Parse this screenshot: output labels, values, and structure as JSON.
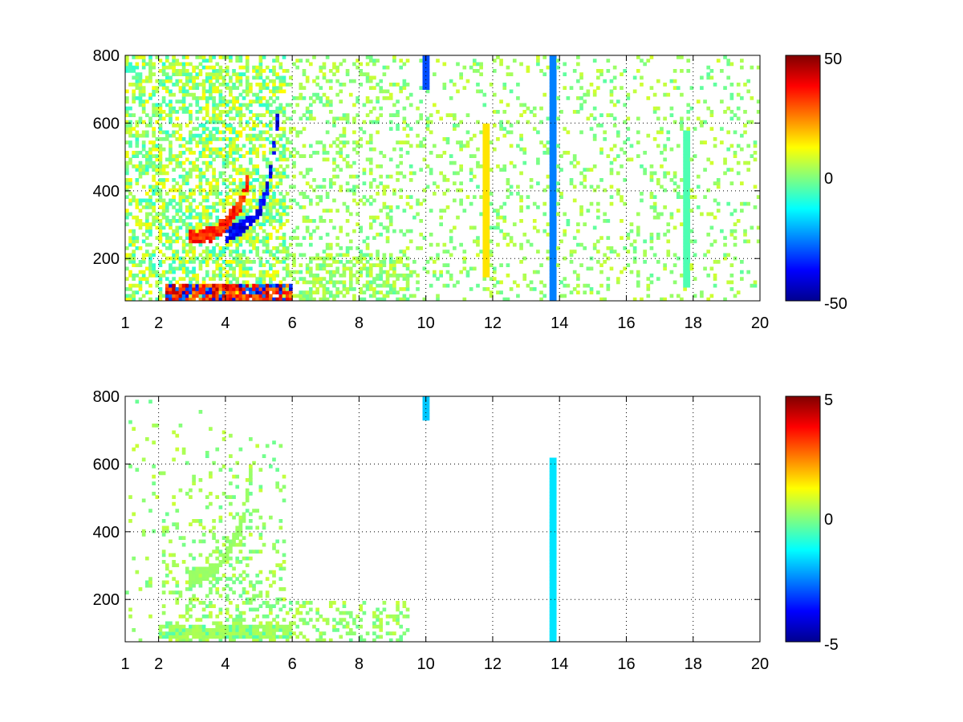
{
  "chart_data": [
    {
      "type": "heatmap",
      "title": "",
      "xlabel": "",
      "ylabel": "",
      "xlim": [
        1,
        20
      ],
      "ylim": [
        75,
        800
      ],
      "xticks": [
        1,
        2,
        4,
        6,
        8,
        10,
        12,
        14,
        16,
        18,
        20
      ],
      "xtick_labels": [
        "1",
        "2",
        "4",
        "6",
        "8",
        "10",
        "12",
        "14",
        "16",
        "18",
        "20"
      ],
      "yticks": [
        200,
        400,
        600,
        800
      ],
      "ytick_labels": [
        "200",
        "400",
        "600",
        "800"
      ],
      "grid": true,
      "colormap": "jet",
      "colorbar": {
        "min": -50,
        "max": 50,
        "tick_labels": [
          "50",
          "0",
          "-50"
        ]
      },
      "features": [
        {
          "kind": "band",
          "desc": "strong positive low-frequency band",
          "x": [
            2.2,
            6.0
          ],
          "y": [
            80,
            130
          ],
          "value": 45
        },
        {
          "kind": "curve",
          "desc": "positive arc",
          "points": [
            [
              2.9,
              265
            ],
            [
              3.5,
              270
            ],
            [
              4.0,
              300
            ],
            [
              4.5,
              370
            ],
            [
              4.7,
              440
            ]
          ],
          "value": 40
        },
        {
          "kind": "curve",
          "desc": "negative arc",
          "points": [
            [
              4.0,
              270
            ],
            [
              4.6,
              300
            ],
            [
              5.0,
              340
            ],
            [
              5.3,
              420
            ],
            [
              5.5,
              560
            ],
            [
              5.6,
              650
            ]
          ],
          "value": -45
        },
        {
          "kind": "line",
          "x": 13.8,
          "y": [
            80,
            800
          ],
          "value": -25
        },
        {
          "kind": "line",
          "x": 17.8,
          "y": [
            120,
            580
          ],
          "value": -5
        },
        {
          "kind": "line",
          "x": 11.8,
          "y": [
            150,
            600
          ],
          "value": 15
        },
        {
          "kind": "line",
          "x": 10.0,
          "y": [
            700,
            800
          ],
          "value": -30
        }
      ]
    },
    {
      "type": "heatmap",
      "title": "",
      "xlabel": "",
      "ylabel": "",
      "xlim": [
        1,
        20
      ],
      "ylim": [
        75,
        800
      ],
      "xticks": [
        1,
        2,
        4,
        6,
        8,
        10,
        12,
        14,
        16,
        18,
        20
      ],
      "xtick_labels": [
        "1",
        "2",
        "4",
        "6",
        "8",
        "10",
        "12",
        "14",
        "16",
        "18",
        "20"
      ],
      "yticks": [
        200,
        400,
        600,
        800
      ],
      "ytick_labels": [
        "200",
        "400",
        "600",
        "800"
      ],
      "grid": true,
      "colormap": "jet",
      "colorbar": {
        "min": -5,
        "max": 5,
        "tick_labels": [
          "5",
          "0",
          "-5"
        ]
      },
      "features": [
        {
          "kind": "band",
          "desc": "weak positive low-frequency band",
          "x": [
            2.0,
            6.0
          ],
          "y": [
            85,
            130
          ],
          "value": 0.5
        },
        {
          "kind": "curve",
          "desc": "weak arc",
          "points": [
            [
              2.9,
              260
            ],
            [
              3.5,
              280
            ],
            [
              4.0,
              330
            ],
            [
              4.5,
              420
            ],
            [
              4.8,
              600
            ]
          ],
          "value": 0.3
        },
        {
          "kind": "line",
          "x": 13.8,
          "y": [
            80,
            620
          ],
          "value": -1.5
        },
        {
          "kind": "line",
          "x": 10.0,
          "y": [
            730,
            800
          ],
          "value": -1.8
        }
      ]
    }
  ]
}
